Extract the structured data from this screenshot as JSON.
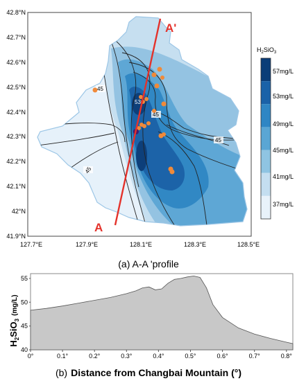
{
  "map": {
    "y_ticks": [
      "42.8°N",
      "42.7°N",
      "42.6°N",
      "42.5°N",
      "42.4°N",
      "42.3°N",
      "42.2°N",
      "42.1°N",
      "42°N",
      "41.9°N"
    ],
    "x_ticks": [
      "127.7°E",
      "127.9°E",
      "128.1°E",
      "128.3°E",
      "128.5°E"
    ],
    "label_a": "A",
    "label_a_prime": "A'",
    "contour_labels": [
      "45",
      "45",
      "45",
      "45",
      "45",
      "53"
    ],
    "legend": {
      "title_main": "H",
      "title_sub1": "2",
      "title_mid": "SiO",
      "title_sub2": "3",
      "items": [
        "57mg/L",
        "53mg/L",
        "49mg/L",
        "45mg/L",
        "41mg/L",
        "37mg/L"
      ],
      "colors": [
        "#0a3d78",
        "#1a62a8",
        "#2f86c4",
        "#5aa6d4",
        "#8fc4e2",
        "#c4def0",
        "#e8f2fa"
      ]
    },
    "caption": "(a) A-A 'profile"
  },
  "chart_data": {
    "type": "area",
    "title": "",
    "xlabel": "Distance from Changbai Mountain  (°)",
    "ylabel": "H2SiO3  (mg/L)",
    "ylabel_parts": {
      "main": "H",
      "sub1": "2",
      "mid": "SiO",
      "sub2": "3",
      "unit": "(mg/L)"
    },
    "caption_prefix": "(b)",
    "xlim": [
      0,
      0.82
    ],
    "ylim": [
      40,
      56
    ],
    "x_ticks": [
      "0°",
      "0.1°",
      "0.2°",
      "0.3°",
      "0.4°",
      "0.5°",
      "0.6°",
      "0.7°",
      "0.8°"
    ],
    "y_ticks": [
      "40",
      "45",
      "50",
      "55"
    ],
    "x": [
      0,
      0.05,
      0.1,
      0.15,
      0.2,
      0.25,
      0.3,
      0.33,
      0.35,
      0.37,
      0.39,
      0.41,
      0.43,
      0.45,
      0.47,
      0.49,
      0.51,
      0.53,
      0.55,
      0.57,
      0.6,
      0.65,
      0.7,
      0.75,
      0.8,
      0.82
    ],
    "values": [
      48.3,
      48.7,
      49.2,
      49.8,
      50.4,
      51.0,
      51.8,
      52.4,
      53.0,
      53.2,
      52.6,
      52.8,
      54.0,
      54.8,
      55.0,
      55.3,
      55.5,
      55.2,
      53.0,
      49.5,
      46.8,
      44.6,
      43.3,
      42.4,
      41.6,
      41.3
    ],
    "fill": "#c8c8c8",
    "stroke": "#555555"
  }
}
